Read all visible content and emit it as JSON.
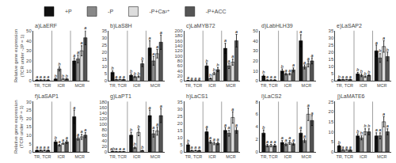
{
  "chart_data": [
    {
      "type": "bar",
      "title": "a)LaERF",
      "ylabel": "Relative gene expression\n(TCR under -JP = 1)",
      "legend": "upper left",
      "grid": false,
      "categories": [
        "TR, TCR",
        "ICR",
        "MCR"
      ],
      "ylim": [
        0,
        50
      ],
      "yticks": [
        0,
        10,
        20,
        30,
        40,
        50
      ],
      "series": [
        {
          "name": "+P",
          "color": "#111111",
          "values": [
            1,
            2,
            20
          ],
          "errors": [
            0.2,
            0.5,
            3
          ],
          "annotations": [
            "a",
            "b",
            "a"
          ]
        },
        {
          "name": "-P",
          "color": "#888888",
          "values": [
            1,
            12,
            22
          ],
          "errors": [
            0.2,
            2,
            4
          ],
          "annotations": [
            "a",
            "b",
            "a"
          ]
        },
        {
          "name": "-P+Ca²⁺",
          "color": "#dddddd",
          "values": [
            1,
            2,
            30
          ],
          "errors": [
            0.2,
            0.5,
            5
          ],
          "annotations": [
            "a",
            "b",
            "a"
          ]
        },
        {
          "name": "-P+ACC",
          "color": "#555555",
          "values": [
            1,
            2,
            43
          ],
          "errors": [
            0.2,
            0.5,
            7
          ],
          "annotations": [
            "a",
            "b",
            "a"
          ]
        }
      ]
    },
    {
      "type": "bar",
      "title": "b)LaS8H",
      "grid": false,
      "categories": [
        "TR, TCR",
        "ICR",
        "MCR"
      ],
      "ylim": [
        0,
        35
      ],
      "yticks": [
        0,
        5,
        10,
        15,
        20,
        25,
        30,
        35
      ],
      "series": [
        {
          "name": "+P",
          "color": "#111111",
          "values": [
            6,
            4,
            23
          ],
          "errors": [
            1,
            1,
            5
          ],
          "annotations": [
            "b",
            "b",
            "a"
          ]
        },
        {
          "name": "-P",
          "color": "#888888",
          "values": [
            1,
            3,
            14
          ],
          "errors": [
            0.2,
            0.5,
            3
          ],
          "annotations": [
            "a",
            "b",
            "a"
          ]
        },
        {
          "name": "-P+Ca²⁺",
          "color": "#dddddd",
          "values": [
            1,
            3,
            19
          ],
          "errors": [
            0.2,
            0.5,
            3
          ],
          "annotations": [
            "a",
            "b",
            "a"
          ]
        },
        {
          "name": "-P+ACC",
          "color": "#555555",
          "values": [
            1,
            12,
            27
          ],
          "errors": [
            0.2,
            2,
            5
          ],
          "annotations": [
            "a",
            "b",
            "a"
          ]
        }
      ]
    },
    {
      "type": "bar",
      "title": "c)LaMYB72",
      "grid": false,
      "categories": [
        "TR, TCR",
        "ICR",
        "MCR"
      ],
      "ylim": [
        0,
        200
      ],
      "yticks": [
        0,
        20,
        40,
        60,
        80,
        100,
        120,
        140,
        160,
        180,
        200
      ],
      "series": [
        {
          "name": "+P",
          "color": "#111111",
          "values": [
            2,
            60,
            130
          ],
          "errors": [
            0.5,
            10,
            20
          ],
          "annotations": [
            "a",
            "b",
            "a"
          ]
        },
        {
          "name": "-P",
          "color": "#888888",
          "values": [
            1,
            10,
            60
          ],
          "errors": [
            0.2,
            2,
            10
          ],
          "annotations": [
            "a",
            "b",
            "a"
          ]
        },
        {
          "name": "-P+Ca²⁺",
          "color": "#dddddd",
          "values": [
            1,
            30,
            75
          ],
          "errors": [
            0.2,
            5,
            12
          ],
          "annotations": [
            "a",
            "b",
            "a"
          ]
        },
        {
          "name": "-P+ACC",
          "color": "#555555",
          "values": [
            1,
            45,
            160
          ],
          "errors": [
            0.2,
            8,
            25
          ],
          "annotations": [
            "a",
            "b",
            "a"
          ]
        }
      ]
    },
    {
      "type": "bar",
      "title": "d)LabHLH39",
      "grid": false,
      "categories": [
        "TR, TCR",
        "ICR",
        "MCR"
      ],
      "ylim": [
        0,
        50
      ],
      "yticks": [
        0,
        10,
        20,
        30,
        40,
        50
      ],
      "series": [
        {
          "name": "+P",
          "color": "#111111",
          "values": [
            5,
            10,
            40
          ],
          "errors": [
            1,
            2,
            6
          ],
          "annotations": [
            "b",
            "b",
            "a"
          ]
        },
        {
          "name": "-P",
          "color": "#888888",
          "values": [
            1,
            7,
            14
          ],
          "errors": [
            0.2,
            1,
            2
          ],
          "annotations": [
            "a",
            "a",
            "a"
          ]
        },
        {
          "name": "-P+Ca²⁺",
          "color": "#dddddd",
          "values": [
            1,
            7,
            17
          ],
          "errors": [
            0.2,
            1,
            3
          ],
          "annotations": [
            "a",
            "a",
            "a"
          ]
        },
        {
          "name": "-P+ACC",
          "color": "#555555",
          "values": [
            1,
            11,
            20
          ],
          "errors": [
            0.2,
            2,
            3
          ],
          "annotations": [
            "a",
            "a",
            "a"
          ]
        }
      ]
    },
    {
      "type": "bar",
      "title": "e)LaSAP2",
      "grid": false,
      "categories": [
        "TR, TCR",
        "ICR",
        "MCR"
      ],
      "ylim": [
        0,
        35
      ],
      "yticks": [
        0,
        5,
        10,
        15,
        20,
        25,
        30,
        35
      ],
      "series": [
        {
          "name": "+P",
          "color": "#111111",
          "values": [
            1,
            5,
            21
          ],
          "errors": [
            0.2,
            1,
            4
          ],
          "annotations": [
            "b",
            "b",
            "a"
          ]
        },
        {
          "name": "-P",
          "color": "#888888",
          "values": [
            1,
            4,
            16
          ],
          "errors": [
            0.2,
            1,
            3
          ],
          "annotations": [
            "a",
            "b",
            "b"
          ]
        },
        {
          "name": "-P+Ca²⁺",
          "color": "#dddddd",
          "values": [
            1,
            3,
            24
          ],
          "errors": [
            0.2,
            0.5,
            4
          ],
          "annotations": [
            "a",
            "b",
            "a"
          ]
        },
        {
          "name": "-P+ACC",
          "color": "#555555",
          "values": [
            1,
            4,
            17
          ],
          "errors": [
            0.2,
            0.5,
            3
          ],
          "annotations": [
            "a",
            "b",
            "b"
          ]
        }
      ]
    },
    {
      "type": "bar",
      "title": "f)LaSAP1",
      "ylabel": "Relative gene expression\n(TCR under -JP = 1)",
      "grid": false,
      "categories": [
        "TR, TCR",
        "ICR",
        "MCR"
      ],
      "ylim": [
        0,
        30
      ],
      "yticks": [
        0,
        5,
        10,
        15,
        20,
        25,
        30
      ],
      "series": [
        {
          "name": "+P",
          "color": "#111111",
          "values": [
            1,
            6,
            21
          ],
          "errors": [
            0.2,
            1,
            4
          ],
          "annotations": [
            "a",
            "b",
            "a"
          ]
        },
        {
          "name": "-P",
          "color": "#888888",
          "values": [
            1,
            4,
            8
          ],
          "errors": [
            0.2,
            0.5,
            1
          ],
          "annotations": [
            "a",
            "a",
            "a"
          ]
        },
        {
          "name": "-P+Ca²⁺",
          "color": "#dddddd",
          "values": [
            1,
            5,
            9
          ],
          "errors": [
            0.2,
            0.5,
            1.5
          ],
          "annotations": [
            "a",
            "a",
            "a"
          ]
        },
        {
          "name": "-P+ACC",
          "color": "#555555",
          "values": [
            1,
            6,
            10
          ],
          "errors": [
            0.2,
            1,
            1.5
          ],
          "annotations": [
            "a",
            "a",
            "a"
          ]
        }
      ]
    },
    {
      "type": "bar",
      "title": "g)LaPT1",
      "grid": false,
      "categories": [
        "TR, TCR",
        "ICR",
        "MCR"
      ],
      "ylim": [
        0,
        180
      ],
      "yticks": [
        0,
        20,
        40,
        60,
        80,
        100,
        120,
        140,
        160,
        180
      ],
      "series": [
        {
          "name": "+P",
          "color": "#111111",
          "values": [
            2,
            60,
            130
          ],
          "errors": [
            0.3,
            10,
            20
          ],
          "annotations": [
            "ab",
            "b",
            "a"
          ]
        },
        {
          "name": "-P",
          "color": "#888888",
          "values": [
            1,
            15,
            65
          ],
          "errors": [
            0.2,
            3,
            12
          ],
          "annotations": [
            "a",
            "b",
            "a"
          ]
        },
        {
          "name": "-P+Ca²⁺",
          "color": "#dddddd",
          "values": [
            1,
            70,
            75
          ],
          "errors": [
            0.2,
            12,
            15
          ],
          "annotations": [
            "a",
            "b",
            "a"
          ]
        },
        {
          "name": "-P+ACC",
          "color": "#555555",
          "values": [
            1,
            5,
            130
          ],
          "errors": [
            0.2,
            1,
            25
          ],
          "annotations": [
            "a",
            "b",
            "a"
          ]
        }
      ]
    },
    {
      "type": "bar",
      "title": "h)LaCS1",
      "grid": false,
      "categories": [
        "TR, TCR",
        "ICR",
        "MCR"
      ],
      "ylim": [
        0,
        35
      ],
      "yticks": [
        0,
        5,
        10,
        15,
        20,
        25,
        30,
        35
      ],
      "series": [
        {
          "name": "+P",
          "color": "#111111",
          "values": [
            5,
            14,
            15
          ],
          "errors": [
            1,
            2,
            2
          ],
          "annotations": [
            "b",
            "a",
            "a"
          ]
        },
        {
          "name": "-P",
          "color": "#888888",
          "values": [
            1,
            7,
            13
          ],
          "errors": [
            0.2,
            1,
            2
          ],
          "annotations": [
            "a",
            "a",
            "a"
          ]
        },
        {
          "name": "-P+Ca²⁺",
          "color": "#dddddd",
          "values": [
            1,
            6,
            24
          ],
          "errors": [
            0.2,
            1,
            4
          ],
          "annotations": [
            "a",
            "a",
            "a"
          ]
        },
        {
          "name": "-P+ACC",
          "color": "#555555",
          "values": [
            1,
            6,
            15
          ],
          "errors": [
            0.2,
            1,
            2
          ],
          "annotations": [
            "a",
            "a",
            "a"
          ]
        }
      ]
    },
    {
      "type": "bar",
      "title": "i)LaCS2",
      "grid": false,
      "categories": [
        "TR, TCR",
        "ICR",
        "MCR"
      ],
      "ylim": [
        0,
        8
      ],
      "yticks": [
        0,
        2,
        4,
        6,
        8
      ],
      "series": [
        {
          "name": "+P",
          "color": "#111111",
          "values": [
            3,
            1.5,
            3
          ],
          "errors": [
            0.5,
            0.3,
            0.5
          ],
          "annotations": [
            "b",
            "a",
            "a"
          ]
        },
        {
          "name": "-P",
          "color": "#888888",
          "values": [
            1,
            1.2,
            1.8
          ],
          "errors": [
            0.2,
            0.2,
            0.3
          ],
          "annotations": [
            "a",
            "a",
            "a"
          ]
        },
        {
          "name": "-P+Ca²⁺",
          "color": "#dddddd",
          "values": [
            1,
            1.5,
            6
          ],
          "errors": [
            0.2,
            0.3,
            1
          ],
          "annotations": [
            "a",
            "a",
            "a"
          ]
        },
        {
          "name": "-P+ACC",
          "color": "#555555",
          "values": [
            1,
            1.3,
            5
          ],
          "errors": [
            0.2,
            0.2,
            0.8
          ],
          "annotations": [
            "a",
            "a",
            "a"
          ]
        }
      ]
    },
    {
      "type": "bar",
      "title": "j)LaMATE6",
      "grid": false,
      "categories": [
        "TR, TCR",
        "ICR",
        "MCR"
      ],
      "ylim": [
        0,
        25
      ],
      "yticks": [
        0,
        5,
        10,
        15,
        20,
        25
      ],
      "series": [
        {
          "name": "+P",
          "color": "#111111",
          "values": [
            3,
            8,
            8
          ],
          "errors": [
            0.5,
            1,
            1.5
          ],
          "annotations": [
            "b",
            "b",
            "a"
          ]
        },
        {
          "name": "-P",
          "color": "#888888",
          "values": [
            1,
            7,
            8
          ],
          "errors": [
            0.2,
            1,
            1.5
          ],
          "annotations": [
            "a",
            "b",
            "a"
          ]
        },
        {
          "name": "-P+Ca²⁺",
          "color": "#dddddd",
          "values": [
            1,
            10,
            15
          ],
          "errors": [
            0.2,
            1.5,
            2.5
          ],
          "annotations": [
            "a",
            "b",
            "a"
          ]
        },
        {
          "name": "-P+ACC",
          "color": "#555555",
          "values": [
            1,
            10,
            10
          ],
          "errors": [
            0.2,
            1.5,
            1.5
          ],
          "annotations": [
            "a",
            "b",
            "a"
          ]
        }
      ]
    }
  ]
}
